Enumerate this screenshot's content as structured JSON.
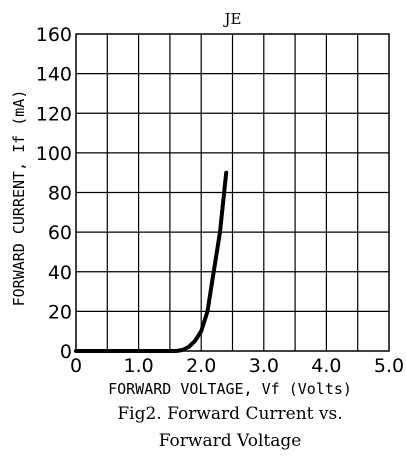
{
  "chart_data": {
    "type": "line",
    "title": "JE",
    "xlabel": "FORWARD VOLTAGE, Vf (Volts)",
    "ylabel": "FORWARD CURRENT, If (mA)",
    "xlim": [
      0,
      5.0
    ],
    "ylim": [
      0,
      160
    ],
    "x_ticks": [
      "0",
      "1.0",
      "2.0",
      "3.0",
      "4.0",
      "5.0"
    ],
    "y_ticks": [
      "0",
      "20",
      "40",
      "60",
      "80",
      "100",
      "120",
      "140",
      "160"
    ],
    "grid": true,
    "series": [
      {
        "x": [
          0,
          0.5,
          1.0,
          1.5,
          1.6,
          1.7,
          1.8,
          1.9,
          2.0,
          2.1,
          2.2,
          2.3,
          2.4
        ],
        "y": [
          0,
          0,
          0,
          0,
          0,
          0.5,
          2,
          5,
          10,
          20,
          40,
          60,
          90
        ]
      }
    ],
    "caption_line1": "Fig2. Forward Current vs.",
    "caption_line2": "Forward Voltage"
  }
}
